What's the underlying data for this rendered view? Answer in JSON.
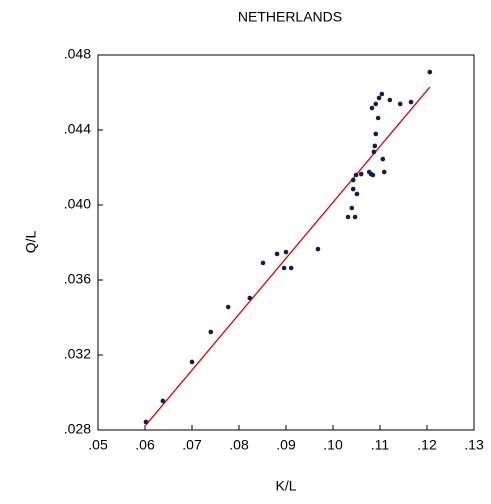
{
  "chart_data": {
    "type": "scatter",
    "title": "NETHERLANDS",
    "xlabel": "K/L",
    "ylabel": "Q/L",
    "series": [
      {
        "color": "#1a1a4e",
        "x": [
          0.0602,
          0.0638,
          0.07,
          0.074,
          0.0777,
          0.0823,
          0.0851,
          0.0881,
          0.0896,
          0.09,
          0.0911,
          0.0968,
          0.1032,
          0.104,
          0.1047,
          0.1043,
          0.1043,
          0.1049,
          0.1051,
          0.106,
          0.1077,
          0.1081,
          0.1085,
          0.1109,
          0.1106,
          0.1089,
          0.1087,
          0.1091,
          0.1096,
          0.1083,
          0.1091,
          0.1098,
          0.1104,
          0.1121,
          0.1143,
          0.1166,
          0.1206
        ],
        "values": [
          0.02843,
          0.02955,
          0.03163,
          0.03323,
          0.03456,
          0.03504,
          0.03691,
          0.03739,
          0.03664,
          0.03749,
          0.03664,
          0.03765,
          0.03936,
          0.03984,
          0.03936,
          0.04133,
          0.04085,
          0.0416,
          0.04059,
          0.04165,
          0.04176,
          0.04165,
          0.0416,
          0.04176,
          0.04245,
          0.04315,
          0.04283,
          0.04379,
          0.04464,
          0.04517,
          0.04539,
          0.04571,
          0.04592,
          0.0456,
          0.04539,
          0.04549,
          0.04709
        ]
      }
    ],
    "fit_line": {
      "color": "#e00000",
      "x": [
        0.0602,
        0.1206
      ],
      "values": [
        0.02827,
        0.04629
      ]
    },
    "xlim": [
      0.05,
      0.13
    ],
    "xticks": [
      {
        "value": 0.05,
        "label": ".05"
      },
      {
        "value": 0.06,
        "label": ".06"
      },
      {
        "value": 0.07,
        "label": ".07"
      },
      {
        "value": 0.08,
        "label": ".08"
      },
      {
        "value": 0.09,
        "label": ".09"
      },
      {
        "value": 0.1,
        "label": ".10"
      },
      {
        "value": 0.11,
        "label": ".11"
      },
      {
        "value": 0.12,
        "label": ".12"
      },
      {
        "value": 0.13,
        "label": ".13"
      }
    ],
    "ylim": [
      0.028,
      0.048
    ],
    "yticks": [
      {
        "value": 0.028,
        "label": ".028"
      },
      {
        "value": 0.032,
        "label": ".032"
      },
      {
        "value": 0.036,
        "label": ".036"
      },
      {
        "value": 0.04,
        "label": ".040"
      },
      {
        "value": 0.044,
        "label": ".044"
      },
      {
        "value": 0.048,
        "label": ".048"
      }
    ],
    "grid": false
  }
}
